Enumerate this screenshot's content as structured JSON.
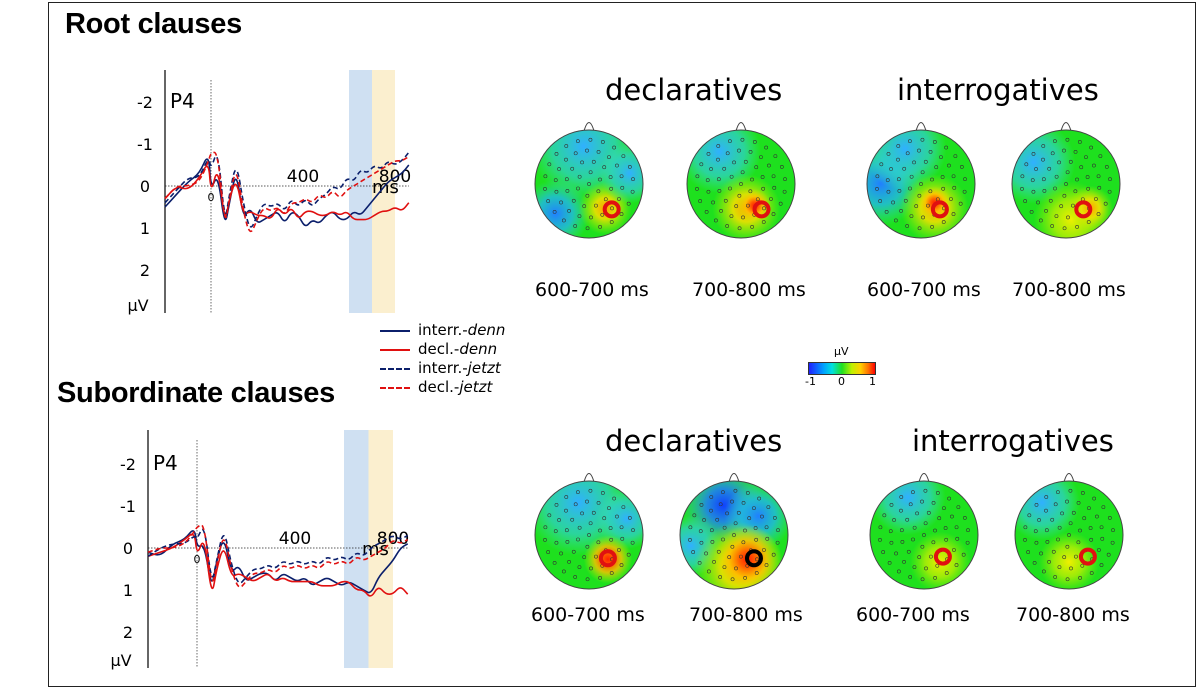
{
  "colors": {
    "interr_denn": "#0b1f6b",
    "decl_denn": "#e01010",
    "interr_jetzt": "#0b1f6b",
    "decl_jetzt": "#e01010",
    "window1": "#cfe0f2",
    "window2": "#fbefcf",
    "electrode_marker": "#e01010",
    "electrode_marker_alt": "#000000"
  },
  "titles": {
    "root": "Root clauses",
    "subordinate": "Subordinate clauses"
  },
  "legend": [
    {
      "prefix": "interr.-",
      "word": "denn",
      "style": "solid",
      "color": "#0b1f6b"
    },
    {
      "prefix": "decl.-",
      "word": "denn",
      "style": "solid",
      "color": "#e01010"
    },
    {
      "prefix": "interr.-",
      "word": "jetzt",
      "style": "dashed",
      "color": "#0b1f6b"
    },
    {
      "prefix": "decl.-",
      "word": "jetzt",
      "style": "dashed",
      "color": "#e01010"
    }
  ],
  "colorbar": {
    "unit": "μV",
    "min": "-1",
    "mid": "0",
    "max": "1"
  },
  "chart_data": [
    {
      "type": "line",
      "panel": "root",
      "electrode": "P4",
      "xunit": "ms",
      "yunit": "μV",
      "y_inverted": true,
      "xlim": [
        -200,
        1000
      ],
      "ylim": [
        -3,
        3
      ],
      "xticks": [
        "400",
        "800"
      ],
      "x_zero_label": "0",
      "yticks": [
        "-2",
        "-1",
        "0",
        "1",
        "2"
      ],
      "windows_ms": [
        [
          600,
          700
        ],
        [
          700,
          800
        ]
      ],
      "x": [
        -200,
        -150,
        -100,
        -50,
        -10,
        0,
        30,
        60,
        80,
        110,
        140,
        170,
        200,
        230,
        260,
        290,
        320,
        350,
        380,
        410,
        440,
        470,
        500,
        530,
        560,
        590,
        620,
        650,
        680,
        710,
        740,
        770,
        800,
        830,
        860
      ],
      "series": [
        {
          "name": "interr.-denn",
          "style": "solid",
          "values": [
            0.5,
            0.2,
            -0.1,
            -0.3,
            -0.8,
            0.1,
            -0.3,
            1.0,
            0.4,
            -0.4,
            0.8,
            0.5,
            0.9,
            0.8,
            0.7,
            0.6,
            0.9,
            0.6,
            0.7,
            1.0,
            0.8,
            0.9,
            0.7,
            0.6,
            0.8,
            0.8,
            0.6,
            0.7,
            0.5,
            0.3,
            0.1,
            -0.1,
            -0.2,
            -0.3,
            -0.5
          ]
        },
        {
          "name": "decl.-denn",
          "style": "solid",
          "values": [
            0.3,
            0.0,
            0.1,
            -0.2,
            -0.6,
            0.2,
            -0.5,
            0.9,
            0.3,
            -0.2,
            0.7,
            0.6,
            0.7,
            0.7,
            0.8,
            0.5,
            0.7,
            0.5,
            0.8,
            0.6,
            0.6,
            0.7,
            0.7,
            0.6,
            0.7,
            0.6,
            0.8,
            0.8,
            0.8,
            0.7,
            0.6,
            0.6,
            0.5,
            0.6,
            0.4
          ]
        },
        {
          "name": "interr.-jetzt",
          "style": "dashed",
          "values": [
            0.4,
            0.1,
            -0.2,
            -0.2,
            -0.7,
            -0.4,
            -0.9,
            0.9,
            0.2,
            -0.6,
            0.4,
            1.1,
            0.7,
            0.4,
            0.5,
            0.4,
            0.6,
            0.3,
            0.5,
            0.3,
            0.5,
            0.3,
            0.2,
            0.0,
            0.1,
            -0.2,
            -0.1,
            -0.4,
            -0.3,
            -0.5,
            -0.4,
            -0.6,
            -0.5,
            -0.6,
            -0.8
          ]
        },
        {
          "name": "decl.-jetzt",
          "style": "dashed",
          "values": [
            0.3,
            0.0,
            0.0,
            -0.1,
            -0.6,
            -0.8,
            -0.8,
            1.0,
            0.3,
            -0.5,
            0.6,
            1.2,
            0.8,
            0.5,
            0.6,
            0.5,
            0.7,
            0.4,
            0.4,
            0.3,
            0.4,
            0.2,
            0.3,
            0.1,
            0.3,
            0.1,
            0.0,
            -0.1,
            -0.2,
            -0.3,
            -0.4,
            -0.5,
            -0.6,
            -0.6,
            -0.7
          ]
        }
      ]
    },
    {
      "type": "line",
      "panel": "subordinate",
      "electrode": "P4",
      "xunit": "ms",
      "yunit": "μV",
      "y_inverted": true,
      "xlim": [
        -200,
        1000
      ],
      "ylim": [
        -3,
        3
      ],
      "xticks": [
        "400",
        "800"
      ],
      "x_zero_label": "0",
      "yticks": [
        "-2",
        "-1",
        "0",
        "1",
        "2"
      ],
      "windows_ms": [
        [
          600,
          700
        ],
        [
          700,
          800
        ]
      ],
      "x": [
        -200,
        -150,
        -100,
        -50,
        -10,
        0,
        30,
        60,
        80,
        110,
        140,
        170,
        200,
        230,
        260,
        290,
        320,
        350,
        380,
        410,
        440,
        470,
        500,
        530,
        560,
        590,
        620,
        650,
        680,
        710,
        740,
        770,
        800,
        830,
        860
      ],
      "series": [
        {
          "name": "interr.-denn",
          "style": "solid",
          "values": [
            0.1,
            0.2,
            -0.1,
            -0.2,
            -0.5,
            0.0,
            -0.1,
            1.0,
            0.3,
            -0.3,
            0.6,
            0.4,
            0.8,
            0.7,
            0.6,
            0.6,
            0.8,
            0.6,
            0.7,
            0.8,
            0.7,
            0.9,
            0.8,
            0.7,
            0.8,
            0.9,
            0.8,
            0.9,
            1.0,
            1.1,
            0.7,
            0.5,
            0.3,
            0.0,
            -0.1
          ]
        },
        {
          "name": "decl.-denn",
          "style": "solid",
          "values": [
            0.2,
            0.1,
            0.0,
            -0.2,
            -0.4,
            0.2,
            -0.3,
            1.2,
            0.5,
            -0.1,
            0.7,
            0.6,
            0.7,
            0.8,
            0.7,
            0.6,
            0.8,
            0.7,
            0.8,
            0.8,
            0.8,
            0.8,
            0.9,
            0.9,
            0.9,
            0.8,
            0.8,
            1.0,
            1.0,
            1.2,
            0.9,
            1.1,
            1.1,
            0.9,
            1.1
          ]
        },
        {
          "name": "interr.-jetzt",
          "style": "dashed",
          "values": [
            0.2,
            0.0,
            -0.1,
            -0.1,
            -0.3,
            -0.2,
            -0.6,
            0.9,
            0.3,
            -0.5,
            0.4,
            0.9,
            0.7,
            0.5,
            0.5,
            0.4,
            0.5,
            0.3,
            0.4,
            0.3,
            0.4,
            0.3,
            0.4,
            0.2,
            0.3,
            0.2,
            0.3,
            0.1,
            0.2,
            0.0,
            -0.1,
            -0.2,
            -0.3,
            -0.2,
            -0.3
          ]
        },
        {
          "name": "decl.-jetzt",
          "style": "dashed",
          "values": [
            0.1,
            0.0,
            0.0,
            -0.1,
            -0.4,
            -0.5,
            -0.6,
            1.0,
            0.4,
            -0.4,
            0.5,
            1.0,
            0.8,
            0.6,
            0.6,
            0.5,
            0.6,
            0.4,
            0.5,
            0.4,
            0.5,
            0.4,
            0.5,
            0.3,
            0.4,
            0.3,
            0.4,
            0.2,
            0.3,
            0.2,
            0.1,
            0.0,
            -0.2,
            -0.1,
            -0.2
          ]
        }
      ]
    }
  ],
  "topomaps": {
    "root": {
      "declaratives": {
        "title": "declaratives",
        "maps": [
          {
            "label": "600-700 ms",
            "pattern": "root-decl-1",
            "marker": "#e01010"
          },
          {
            "label": "700-800 ms",
            "pattern": "root-decl-2",
            "marker": "#e01010"
          }
        ]
      },
      "interrogatives": {
        "title": "interrogatives",
        "maps": [
          {
            "label": "600-700 ms",
            "pattern": "root-int-1",
            "marker": "#e01010"
          },
          {
            "label": "700-800 ms",
            "pattern": "root-int-2",
            "marker": "#e01010"
          }
        ]
      }
    },
    "subordinate": {
      "declaratives": {
        "title": "declaratives",
        "maps": [
          {
            "label": "600-700 ms",
            "pattern": "sub-decl-1",
            "marker": "#e01010"
          },
          {
            "label": "700-800 ms",
            "pattern": "sub-decl-2",
            "marker": "#000000"
          }
        ]
      },
      "interrogatives": {
        "title": "interrogatives",
        "maps": [
          {
            "label": "600-700 ms",
            "pattern": "sub-int-1",
            "marker": "#e01010"
          },
          {
            "label": "700-800 ms",
            "pattern": "sub-int-2",
            "marker": "#e01010"
          }
        ]
      }
    }
  }
}
